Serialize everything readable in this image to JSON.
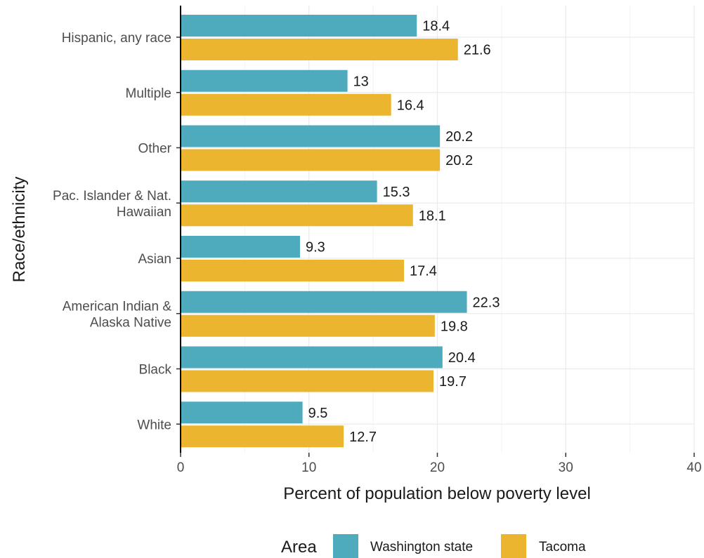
{
  "chart_data": {
    "type": "bar",
    "orientation": "horizontal",
    "categories": [
      "Hispanic, any race",
      "Multiple",
      "Other",
      "Pac. Islander & Nat. Hawaiian",
      "Asian",
      "American Indian & Alaska Native",
      "Black",
      "White"
    ],
    "category_lines": [
      [
        "Hispanic, any race"
      ],
      [
        "Multiple"
      ],
      [
        "Other"
      ],
      [
        "Pac. Islander & Nat.",
        "Hawaiian"
      ],
      [
        "Asian"
      ],
      [
        "American Indian &",
        "Alaska Native"
      ],
      [
        "Black"
      ],
      [
        "White"
      ]
    ],
    "series": [
      {
        "name": "Washington state",
        "color": "#4eabbe",
        "values": [
          18.4,
          13,
          20.2,
          15.3,
          9.3,
          22.3,
          20.4,
          9.5
        ],
        "value_labels": [
          "18.4",
          "13",
          "20.2",
          "15.3",
          "9.3",
          "22.3",
          "20.4",
          "9.5"
        ]
      },
      {
        "name": "Tacoma",
        "color": "#ebb52f",
        "values": [
          21.6,
          16.4,
          20.2,
          18.1,
          17.4,
          19.8,
          19.7,
          12.7
        ],
        "value_labels": [
          "21.6",
          "16.4",
          "20.2",
          "18.1",
          "17.4",
          "19.8",
          "19.7",
          "12.7"
        ]
      }
    ],
    "xlabel": "Percent of population below poverty level",
    "ylabel": "Race/ethnicity",
    "xlim": [
      0,
      40
    ],
    "xticks": [
      0,
      10,
      20,
      30,
      40
    ],
    "xtick_labels": [
      "0",
      "10",
      "20",
      "30",
      "40"
    ],
    "grid": true,
    "legend": {
      "title": "Area",
      "position": "bottom"
    }
  }
}
